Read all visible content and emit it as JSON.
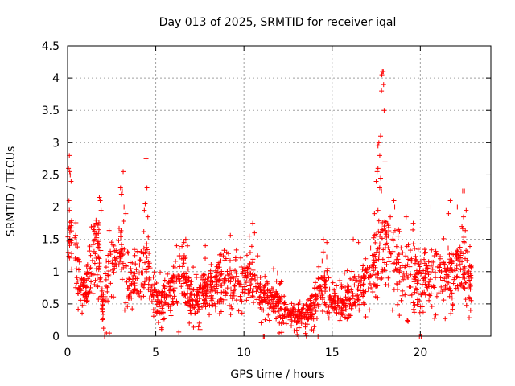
{
  "chart_data": {
    "type": "scatter",
    "title": "Day 013 of 2025, SRMTID for receiver iqal",
    "xlabel": "GPS time / hours",
    "ylabel": "SRMTID / TECUs",
    "xlim": [
      0,
      24
    ],
    "ylim": [
      0,
      4.5
    ],
    "x_ticks": [
      0,
      5,
      10,
      15,
      20
    ],
    "x_tick_labels": [
      "0",
      "5",
      "10",
      "15",
      "20"
    ],
    "y_ticks": [
      0,
      0.5,
      1,
      1.5,
      2,
      2.5,
      3,
      3.5,
      4,
      4.5
    ],
    "y_tick_labels": [
      "0",
      "0.5",
      "1",
      "1.5",
      "2",
      "2.5",
      "3",
      "3.5",
      "4",
      "4.5"
    ],
    "grid": true,
    "marker": "+",
    "color": "#ff0000",
    "profile": [
      [
        0.0,
        1.6,
        1.0
      ],
      [
        0.3,
        1.8,
        1.0
      ],
      [
        0.6,
        0.85,
        0.5
      ],
      [
        1.0,
        0.7,
        0.4
      ],
      [
        1.3,
        1.1,
        0.8
      ],
      [
        1.7,
        1.4,
        0.9
      ],
      [
        2.0,
        0.4,
        0.4
      ],
      [
        2.3,
        0.9,
        0.8
      ],
      [
        2.7,
        1.2,
        0.8
      ],
      [
        3.1,
        1.3,
        0.9
      ],
      [
        3.5,
        0.8,
        0.6
      ],
      [
        4.0,
        0.9,
        0.7
      ],
      [
        4.4,
        1.3,
        0.8
      ],
      [
        4.8,
        0.7,
        0.5
      ],
      [
        5.2,
        0.5,
        0.5
      ],
      [
        5.8,
        0.7,
        0.4
      ],
      [
        6.5,
        1.0,
        0.8
      ],
      [
        7.0,
        0.5,
        0.5
      ],
      [
        7.5,
        0.7,
        0.5
      ],
      [
        8.5,
        0.8,
        0.6
      ],
      [
        9.5,
        0.8,
        0.6
      ],
      [
        10.5,
        0.9,
        0.6
      ],
      [
        11.0,
        0.6,
        0.4
      ],
      [
        12.0,
        0.6,
        0.5
      ],
      [
        12.5,
        0.35,
        0.3
      ],
      [
        13.5,
        0.3,
        0.3
      ],
      [
        14.2,
        0.6,
        0.5
      ],
      [
        14.6,
        0.9,
        0.6
      ],
      [
        15.0,
        0.5,
        0.4
      ],
      [
        16.0,
        0.6,
        0.5
      ],
      [
        16.8,
        0.8,
        0.6
      ],
      [
        17.5,
        1.1,
        0.8
      ],
      [
        18.0,
        1.4,
        1.0
      ],
      [
        18.5,
        1.2,
        0.8
      ],
      [
        19.0,
        0.9,
        0.7
      ],
      [
        19.5,
        0.9,
        0.7
      ],
      [
        20.2,
        0.9,
        0.7
      ],
      [
        20.8,
        0.8,
        0.7
      ],
      [
        21.5,
        0.9,
        0.7
      ],
      [
        22.0,
        1.0,
        0.7
      ],
      [
        22.5,
        1.1,
        0.8
      ],
      [
        22.9,
        0.8,
        0.6
      ]
    ],
    "points": [
      [
        0.05,
        2.6
      ],
      [
        0.1,
        2.8
      ],
      [
        0.12,
        2.55
      ],
      [
        0.15,
        2.5
      ],
      [
        0.2,
        2.4
      ],
      [
        0.08,
        2.1
      ],
      [
        0.1,
        1.95
      ],
      [
        1.8,
        2.15
      ],
      [
        1.85,
        2.1
      ],
      [
        1.9,
        1.95
      ],
      [
        3.0,
        2.3
      ],
      [
        3.05,
        2.2
      ],
      [
        3.1,
        2.25
      ],
      [
        3.15,
        2.55
      ],
      [
        3.2,
        2.0
      ],
      [
        3.3,
        1.9
      ],
      [
        4.35,
        1.95
      ],
      [
        4.4,
        2.05
      ],
      [
        4.45,
        2.75
      ],
      [
        4.5,
        2.3
      ],
      [
        4.55,
        1.85
      ],
      [
        6.6,
        1.45
      ],
      [
        6.7,
        1.5
      ],
      [
        6.8,
        1.4
      ],
      [
        10.3,
        1.55
      ],
      [
        10.5,
        1.75
      ],
      [
        10.6,
        1.6
      ],
      [
        14.5,
        1.5
      ],
      [
        14.7,
        1.45
      ],
      [
        16.2,
        1.5
      ],
      [
        16.5,
        1.45
      ],
      [
        17.4,
        1.9
      ],
      [
        17.5,
        2.4
      ],
      [
        17.55,
        2.55
      ],
      [
        17.6,
        2.95
      ],
      [
        17.65,
        3.0
      ],
      [
        17.7,
        2.8
      ],
      [
        17.75,
        3.1
      ],
      [
        17.8,
        3.8
      ],
      [
        17.82,
        4.05
      ],
      [
        17.85,
        4.1
      ],
      [
        17.9,
        4.1
      ],
      [
        17.92,
        3.9
      ],
      [
        17.95,
        3.5
      ],
      [
        18.0,
        2.7
      ],
      [
        17.6,
        2.6
      ],
      [
        17.7,
        2.3
      ],
      [
        17.75,
        2.45
      ],
      [
        17.8,
        2.25
      ],
      [
        17.6,
        1.95
      ],
      [
        18.5,
        2.1
      ],
      [
        18.55,
        2.0
      ],
      [
        18.3,
        1.85
      ],
      [
        19.2,
        1.85
      ],
      [
        19.6,
        1.75
      ],
      [
        20.6,
        2.0
      ],
      [
        21.6,
        1.9
      ],
      [
        21.7,
        2.1
      ],
      [
        22.1,
        2.0
      ],
      [
        22.4,
        2.25
      ],
      [
        22.5,
        2.25
      ],
      [
        22.45,
        1.85
      ],
      [
        22.6,
        1.95
      ],
      [
        11.1,
        0.0
      ],
      [
        11.15,
        0.0
      ],
      [
        12.0,
        0.05
      ],
      [
        13.1,
        0.0
      ],
      [
        14.2,
        0.0
      ],
      [
        19.95,
        0.0
      ],
      [
        20.05,
        0.0
      ],
      [
        2.1,
        0.0
      ],
      [
        2.2,
        0.05
      ]
    ],
    "generated_point_count": 1700
  }
}
